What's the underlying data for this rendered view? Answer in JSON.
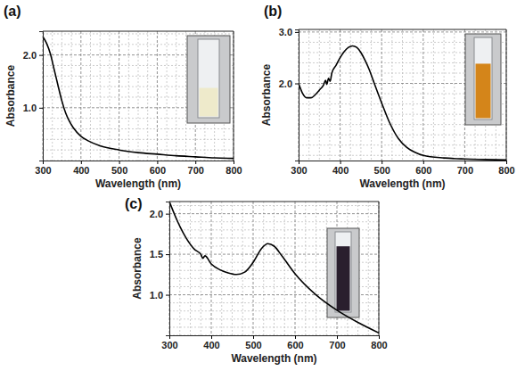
{
  "chart_data": [
    {
      "type": "line",
      "panel_label": "(a)",
      "x_label": "Wavelength (nm)",
      "y_label": "Absorbance",
      "x": [
        300,
        310,
        320,
        330,
        340,
        350,
        360,
        370,
        380,
        400,
        420,
        450,
        500,
        550,
        600,
        650,
        700,
        750,
        800
      ],
      "values": [
        2.35,
        2.22,
        2.02,
        1.72,
        1.42,
        1.13,
        0.9,
        0.74,
        0.62,
        0.46,
        0.37,
        0.28,
        0.2,
        0.15,
        0.12,
        0.09,
        0.07,
        0.05,
        0.04
      ],
      "color": "#000000",
      "xlim": [
        300,
        800
      ],
      "xticks": [
        300,
        400,
        500,
        600,
        700,
        800
      ],
      "ylim": [
        0,
        2.45
      ],
      "yticks": [
        {
          "value": 1,
          "label": "1.0"
        },
        {
          "value": 2,
          "label": "2.0"
        }
      ],
      "grid": true
    },
    {
      "type": "line",
      "panel_label": "(b)",
      "x_label": "Wavelength (nm)",
      "y_label": "Absorbance",
      "x": [
        300,
        310,
        320,
        330,
        340,
        350,
        360,
        365,
        368,
        372,
        376,
        380,
        390,
        400,
        410,
        420,
        430,
        440,
        450,
        460,
        470,
        480,
        500,
        520,
        540,
        560,
        580,
        600,
        650,
        700,
        750,
        800
      ],
      "values": [
        2.0,
        1.8,
        1.72,
        1.72,
        1.78,
        1.87,
        1.97,
        2.06,
        1.98,
        2.1,
        2.04,
        2.2,
        2.35,
        2.5,
        2.62,
        2.7,
        2.73,
        2.7,
        2.6,
        2.45,
        2.27,
        2.05,
        1.62,
        1.22,
        0.93,
        0.76,
        0.66,
        0.6,
        0.55,
        0.53,
        0.52,
        0.51
      ],
      "color": "#000000",
      "xlim": [
        300,
        800
      ],
      "xticks": [
        300,
        400,
        500,
        600,
        700,
        800
      ],
      "ylim": [
        0.5,
        3.05
      ],
      "yticks": [
        {
          "value": 2,
          "label": "2.0"
        },
        {
          "value": 3,
          "label": "3.0"
        }
      ],
      "grid": true
    },
    {
      "type": "line",
      "panel_label": "(c)",
      "x_label": "Wavelength (nm)",
      "y_label": "Absorbance",
      "x": [
        300,
        320,
        340,
        360,
        375,
        380,
        385,
        400,
        420,
        440,
        460,
        480,
        500,
        520,
        535,
        550,
        570,
        600,
        650,
        700,
        750,
        800
      ],
      "values": [
        2.15,
        1.9,
        1.7,
        1.56,
        1.5,
        1.45,
        1.48,
        1.38,
        1.31,
        1.27,
        1.25,
        1.28,
        1.4,
        1.57,
        1.63,
        1.6,
        1.47,
        1.26,
        1.0,
        0.81,
        0.66,
        0.53
      ],
      "color": "#000000",
      "xlim": [
        300,
        800
      ],
      "xticks": [
        300,
        400,
        500,
        600,
        700,
        800
      ],
      "ylim": [
        0.5,
        2.15
      ],
      "yticks": [
        {
          "value": 1,
          "label": "1.0"
        },
        {
          "value": 1.5,
          "label": "1.5"
        },
        {
          "value": 2,
          "label": "2.0"
        }
      ],
      "grid": true
    }
  ]
}
